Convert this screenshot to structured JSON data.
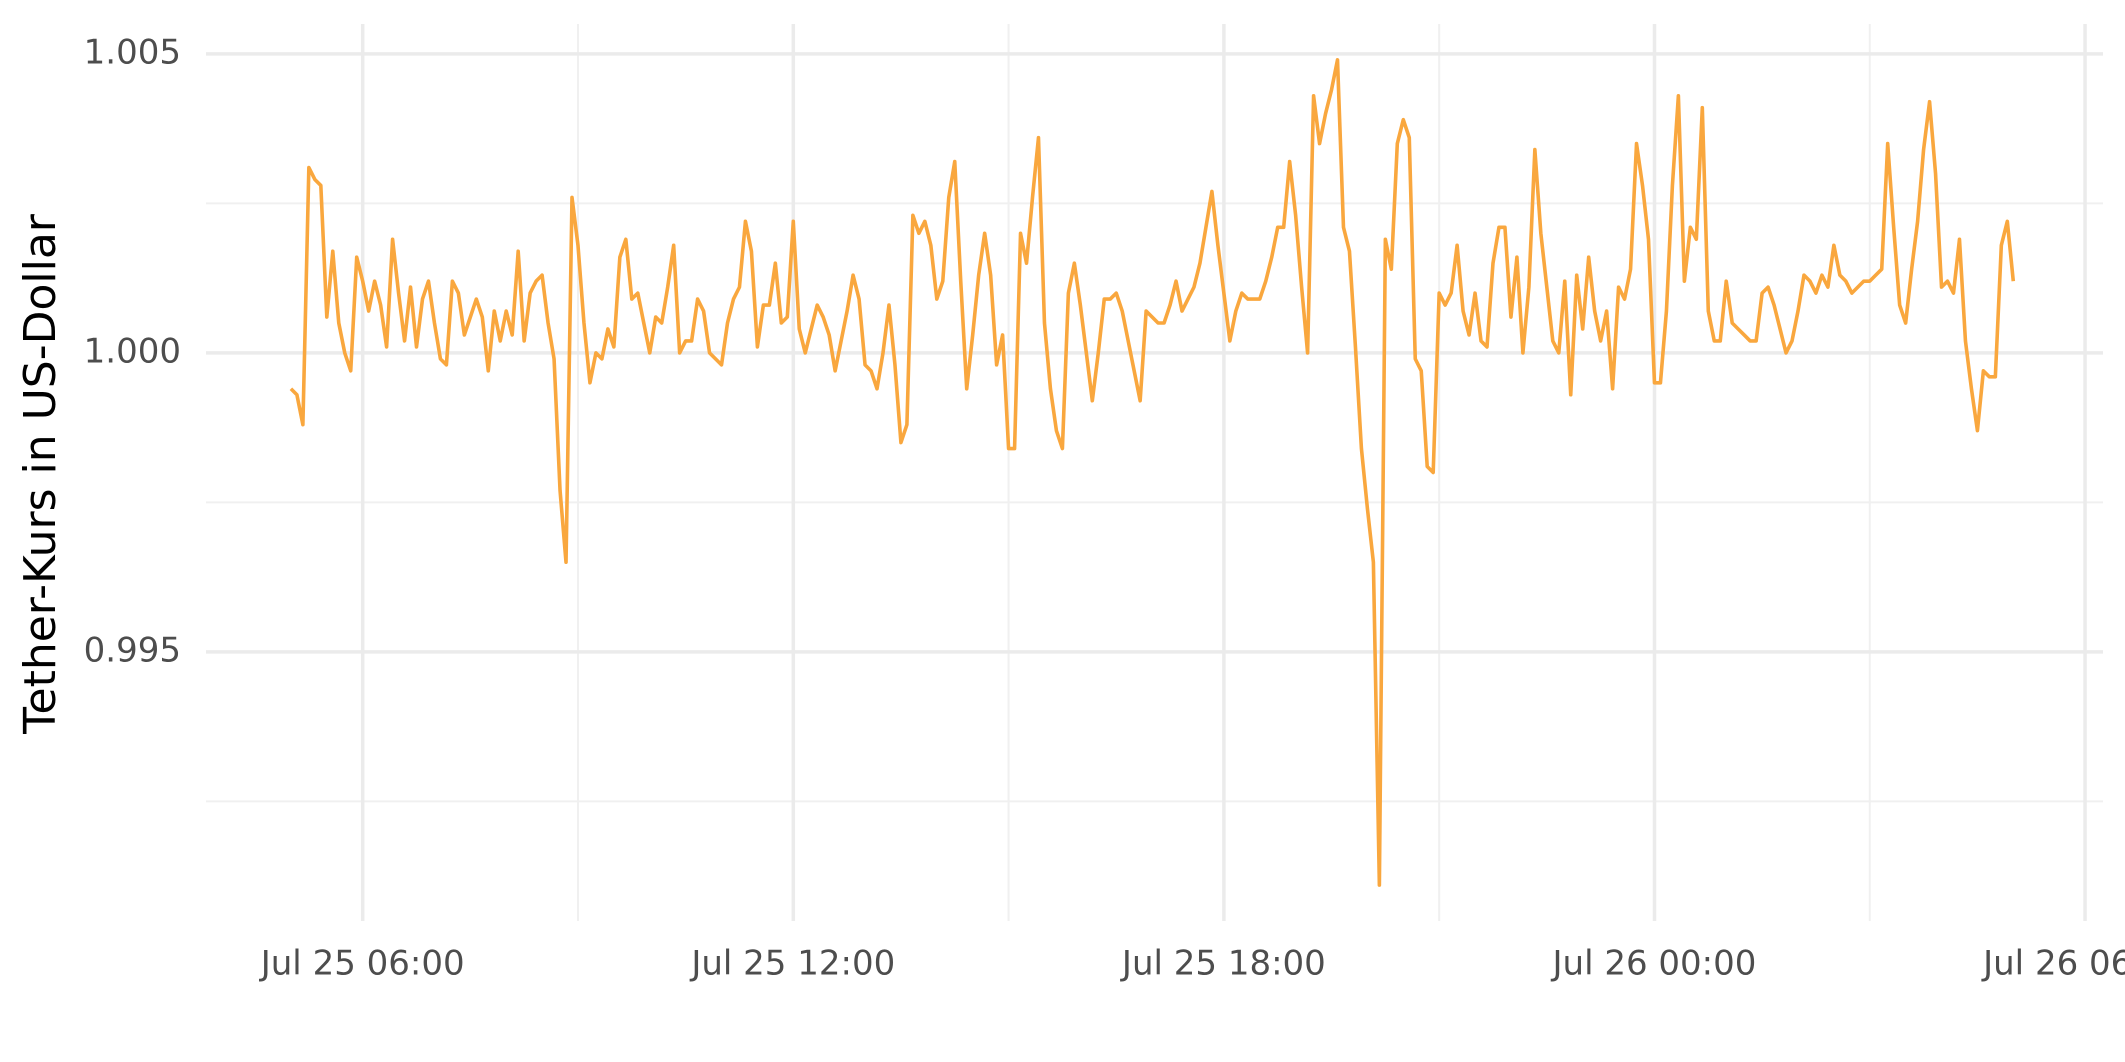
{
  "chart_data": {
    "type": "line",
    "ylabel": "Tether-Kurs in US-Dollar",
    "color": "#f9a73e",
    "grid": true,
    "xlim": [
      "Jul 25 03:49",
      "Jul 26 06:15"
    ],
    "xticks": [
      "Jul 25 06:00",
      "Jul 25 12:00",
      "Jul 25 18:00",
      "Jul 26 00:00",
      "Jul 26 06:00"
    ],
    "xminor": [
      "Jul 25 09:00",
      "Jul 25 15:00",
      "Jul 25 21:00",
      "Jul 26 03:00"
    ],
    "ylim": [
      0.9905,
      1.0055
    ],
    "yticks": [
      0.995,
      {
        "value": 1,
        "label": "1.000"
      },
      1.005
    ],
    "yminor": [
      0.9925,
      0.9975,
      1.0025
    ],
    "x": [
      "Jul 25 05:00",
      "Jul 25 05:05",
      "Jul 25 05:10",
      "Jul 25 05:15",
      "Jul 25 05:20",
      "Jul 25 05:25",
      "Jul 25 05:30",
      "Jul 25 05:35",
      "Jul 25 05:40",
      "Jul 25 05:45",
      "Jul 25 05:50",
      "Jul 25 05:55",
      "Jul 25 06:00",
      "Jul 25 06:05",
      "Jul 25 06:10",
      "Jul 25 06:15",
      "Jul 25 06:20",
      "Jul 25 06:25",
      "Jul 25 06:30",
      "Jul 25 06:35",
      "Jul 25 06:40",
      "Jul 25 06:45",
      "Jul 25 06:50",
      "Jul 25 06:55",
      "Jul 25 07:00",
      "Jul 25 07:05",
      "Jul 25 07:10",
      "Jul 25 07:15",
      "Jul 25 07:20",
      "Jul 25 07:25",
      "Jul 25 07:30",
      "Jul 25 07:35",
      "Jul 25 07:40",
      "Jul 25 07:45",
      "Jul 25 07:50",
      "Jul 25 07:55",
      "Jul 25 08:00",
      "Jul 25 08:05",
      "Jul 25 08:10",
      "Jul 25 08:15",
      "Jul 25 08:20",
      "Jul 25 08:25",
      "Jul 25 08:30",
      "Jul 25 08:35",
      "Jul 25 08:40",
      "Jul 25 08:45",
      "Jul 25 08:50",
      "Jul 25 08:55",
      "Jul 25 09:00",
      "Jul 25 09:05",
      "Jul 25 09:10",
      "Jul 25 09:15",
      "Jul 25 09:20",
      "Jul 25 09:25",
      "Jul 25 09:30",
      "Jul 25 09:35",
      "Jul 25 09:40",
      "Jul 25 09:45",
      "Jul 25 09:50",
      "Jul 25 09:55",
      "Jul 25 10:00",
      "Jul 25 10:05",
      "Jul 25 10:10",
      "Jul 25 10:15",
      "Jul 25 10:20",
      "Jul 25 10:25",
      "Jul 25 10:30",
      "Jul 25 10:35",
      "Jul 25 10:40",
      "Jul 25 10:45",
      "Jul 25 10:50",
      "Jul 25 10:55",
      "Jul 25 11:00",
      "Jul 25 11:05",
      "Jul 25 11:10",
      "Jul 25 11:15",
      "Jul 25 11:20",
      "Jul 25 11:25",
      "Jul 25 11:30",
      "Jul 25 11:35",
      "Jul 25 11:40",
      "Jul 25 11:45",
      "Jul 25 11:50",
      "Jul 25 11:55",
      "Jul 25 12:00",
      "Jul 25 12:05",
      "Jul 25 12:10",
      "Jul 25 12:15",
      "Jul 25 12:20",
      "Jul 25 12:25",
      "Jul 25 12:30",
      "Jul 25 12:35",
      "Jul 25 12:40",
      "Jul 25 12:45",
      "Jul 25 12:50",
      "Jul 25 12:55",
      "Jul 25 13:00",
      "Jul 25 13:05",
      "Jul 25 13:10",
      "Jul 25 13:15",
      "Jul 25 13:20",
      "Jul 25 13:25",
      "Jul 25 13:30",
      "Jul 25 13:35",
      "Jul 25 13:40",
      "Jul 25 13:45",
      "Jul 25 13:50",
      "Jul 25 13:55",
      "Jul 25 14:00",
      "Jul 25 14:05",
      "Jul 25 14:10",
      "Jul 25 14:15",
      "Jul 25 14:20",
      "Jul 25 14:25",
      "Jul 25 14:30",
      "Jul 25 14:35",
      "Jul 25 14:40",
      "Jul 25 14:45",
      "Jul 25 14:50",
      "Jul 25 14:55",
      "Jul 25 15:00",
      "Jul 25 15:05",
      "Jul 25 15:10",
      "Jul 25 15:15",
      "Jul 25 15:20",
      "Jul 25 15:25",
      "Jul 25 15:30",
      "Jul 25 15:35",
      "Jul 25 15:40",
      "Jul 25 15:45",
      "Jul 25 15:50",
      "Jul 25 15:55",
      "Jul 25 16:00",
      "Jul 25 16:05",
      "Jul 25 16:10",
      "Jul 25 16:15",
      "Jul 25 16:20",
      "Jul 25 16:25",
      "Jul 25 16:30",
      "Jul 25 16:35",
      "Jul 25 16:40",
      "Jul 25 16:45",
      "Jul 25 16:50",
      "Jul 25 16:55",
      "Jul 25 17:00",
      "Jul 25 17:05",
      "Jul 25 17:10",
      "Jul 25 17:15",
      "Jul 25 17:20",
      "Jul 25 17:25",
      "Jul 25 17:30",
      "Jul 25 17:35",
      "Jul 25 17:40",
      "Jul 25 17:45",
      "Jul 25 17:50",
      "Jul 25 17:55",
      "Jul 25 18:00",
      "Jul 25 18:05",
      "Jul 25 18:10",
      "Jul 25 18:15",
      "Jul 25 18:20",
      "Jul 25 18:25",
      "Jul 25 18:30",
      "Jul 25 18:35",
      "Jul 25 18:40",
      "Jul 25 18:45",
      "Jul 25 18:50",
      "Jul 25 18:55",
      "Jul 25 19:00",
      "Jul 25 19:05",
      "Jul 25 19:10",
      "Jul 25 19:15",
      "Jul 25 19:20",
      "Jul 25 19:25",
      "Jul 25 19:30",
      "Jul 25 19:35",
      "Jul 25 19:40",
      "Jul 25 19:45",
      "Jul 25 19:50",
      "Jul 25 19:55",
      "Jul 25 20:00",
      "Jul 25 20:05",
      "Jul 25 20:10",
      "Jul 25 20:15",
      "Jul 25 20:20",
      "Jul 25 20:25",
      "Jul 25 20:30",
      "Jul 25 20:35",
      "Jul 25 20:40",
      "Jul 25 20:45",
      "Jul 25 20:50",
      "Jul 25 20:55",
      "Jul 25 21:00",
      "Jul 25 21:05",
      "Jul 25 21:10",
      "Jul 25 21:15",
      "Jul 25 21:20",
      "Jul 25 21:25",
      "Jul 25 21:30",
      "Jul 25 21:35",
      "Jul 25 21:40",
      "Jul 25 21:45",
      "Jul 25 21:50",
      "Jul 25 21:55",
      "Jul 25 22:00",
      "Jul 25 22:05",
      "Jul 25 22:10",
      "Jul 25 22:15",
      "Jul 25 22:20",
      "Jul 25 22:25",
      "Jul 25 22:30",
      "Jul 25 22:35",
      "Jul 25 22:40",
      "Jul 25 22:45",
      "Jul 25 22:50",
      "Jul 25 22:55",
      "Jul 25 23:00",
      "Jul 25 23:05",
      "Jul 25 23:10",
      "Jul 25 23:15",
      "Jul 25 23:20",
      "Jul 25 23:25",
      "Jul 25 23:30",
      "Jul 25 23:35",
      "Jul 25 23:40",
      "Jul 25 23:45",
      "Jul 25 23:50",
      "Jul 25 23:55",
      "Jul 26 00:00",
      "Jul 26 00:05",
      "Jul 26 00:10",
      "Jul 26 00:15",
      "Jul 26 00:20",
      "Jul 26 00:25",
      "Jul 26 00:30",
      "Jul 26 00:35",
      "Jul 26 00:40",
      "Jul 26 00:45",
      "Jul 26 00:50",
      "Jul 26 00:55",
      "Jul 26 01:00",
      "Jul 26 01:05",
      "Jul 26 01:10",
      "Jul 26 01:15",
      "Jul 26 01:20",
      "Jul 26 01:25",
      "Jul 26 01:30",
      "Jul 26 01:35",
      "Jul 26 01:40",
      "Jul 26 01:45",
      "Jul 26 01:50",
      "Jul 26 01:55",
      "Jul 26 02:00",
      "Jul 26 02:05",
      "Jul 26 02:10",
      "Jul 26 02:15",
      "Jul 26 02:20",
      "Jul 26 02:25",
      "Jul 26 02:30",
      "Jul 26 02:35",
      "Jul 26 02:40",
      "Jul 26 02:45",
      "Jul 26 02:50",
      "Jul 26 02:55",
      "Jul 26 03:00",
      "Jul 26 03:05",
      "Jul 26 03:10",
      "Jul 26 03:15",
      "Jul 26 03:20",
      "Jul 26 03:25",
      "Jul 26 03:30",
      "Jul 26 03:35",
      "Jul 26 03:40",
      "Jul 26 03:45",
      "Jul 26 03:50",
      "Jul 26 03:55",
      "Jul 26 04:00",
      "Jul 26 04:05",
      "Jul 26 04:10",
      "Jul 26 04:15",
      "Jul 26 04:20",
      "Jul 26 04:25",
      "Jul 26 04:30",
      "Jul 26 04:35",
      "Jul 26 04:40",
      "Jul 26 04:45",
      "Jul 26 04:50",
      "Jul 26 04:55",
      "Jul 26 05:00"
    ],
    "values": [
      0.9994,
      0.9993,
      0.9988,
      1.0031,
      1.0029,
      1.0028,
      1.0006,
      1.0017,
      1.0005,
      1.0,
      0.9997,
      1.0016,
      1.0012,
      1.0007,
      1.0012,
      1.0008,
      1.0001,
      1.0019,
      1.001,
      1.0002,
      1.0011,
      1.0001,
      1.0009,
      1.0012,
      1.0005,
      0.9999,
      0.9998,
      1.0012,
      1.001,
      1.0003,
      1.0006,
      1.0009,
      1.0006,
      0.9997,
      1.0007,
      1.0002,
      1.0007,
      1.0003,
      1.0017,
      1.0002,
      1.001,
      1.0012,
      1.0013,
      1.0005,
      0.9999,
      0.9977,
      0.9965,
      1.0026,
      1.0018,
      1.0005,
      0.9995,
      1.0,
      0.9999,
      1.0004,
      1.0001,
      1.0016,
      1.0019,
      1.0009,
      1.001,
      1.0005,
      1.0,
      1.0006,
      1.0005,
      1.0011,
      1.0018,
      1.0,
      1.0002,
      1.0002,
      1.0009,
      1.0007,
      1.0,
      0.9999,
      0.9998,
      1.0005,
      1.0009,
      1.0011,
      1.0022,
      1.0017,
      1.0001,
      1.0008,
      1.0008,
      1.0015,
      1.0005,
      1.0006,
      1.0022,
      1.0004,
      1.0,
      1.0004,
      1.0008,
      1.0006,
      1.0003,
      0.9997,
      1.0002,
      1.0007,
      1.0013,
      1.0009,
      0.9998,
      0.9997,
      0.9994,
      1.0,
      1.0008,
      0.9998,
      0.9985,
      0.9988,
      1.0023,
      1.002,
      1.0022,
      1.0018,
      1.0009,
      1.0012,
      1.0026,
      1.0032,
      1.0012,
      0.9994,
      1.0003,
      1.0013,
      1.002,
      1.0013,
      0.9998,
      1.0003,
      0.9984,
      0.9984,
      1.002,
      1.0015,
      1.0026,
      1.0036,
      1.0005,
      0.9994,
      0.9987,
      0.9984,
      1.001,
      1.0015,
      1.0008,
      1.0,
      0.9992,
      1.0,
      1.0009,
      1.0009,
      1.001,
      1.0007,
      1.0002,
      0.9997,
      0.9992,
      1.0007,
      1.0006,
      1.0005,
      1.0005,
      1.0008,
      1.0012,
      1.0007,
      1.0009,
      1.0011,
      1.0015,
      1.0021,
      1.0027,
      1.0018,
      1.001,
      1.0002,
      1.0007,
      1.001,
      1.0009,
      1.0009,
      1.0009,
      1.0012,
      1.0016,
      1.0021,
      1.0021,
      1.0032,
      1.0023,
      1.0011,
      1.0,
      1.0043,
      1.0035,
      1.004,
      1.0044,
      1.0049,
      1.0021,
      1.0017,
      1.0001,
      0.9984,
      0.9974,
      0.9965,
      0.9911,
      1.0019,
      1.0014,
      1.0035,
      1.0039,
      1.0036,
      0.9999,
      0.9997,
      0.9981,
      0.998,
      1.001,
      1.0008,
      1.001,
      1.0018,
      1.0007,
      1.0003,
      1.001,
      1.0002,
      1.0001,
      1.0015,
      1.0021,
      1.0021,
      1.0006,
      1.0016,
      1.0,
      1.0011,
      1.0034,
      1.002,
      1.0011,
      1.0002,
      1.0,
      1.0012,
      0.9993,
      1.0013,
      1.0004,
      1.0016,
      1.0007,
      1.0002,
      1.0007,
      0.9994,
      1.0011,
      1.0009,
      1.0014,
      1.0035,
      1.0028,
      1.0019,
      0.9995,
      0.9995,
      1.0007,
      1.0028,
      1.0043,
      1.0012,
      1.0021,
      1.0019,
      1.0041,
      1.0007,
      1.0002,
      1.0002,
      1.0012,
      1.0005,
      1.0004,
      1.0003,
      1.0002,
      1.0002,
      1.001,
      1.0011,
      1.0008,
      1.0004,
      1.0,
      1.0002,
      1.0007,
      1.0013,
      1.0012,
      1.001,
      1.0013,
      1.0011,
      1.0018,
      1.0013,
      1.0012,
      1.001,
      1.0011,
      1.0012,
      1.0012,
      1.0013,
      1.0014,
      1.0035,
      1.0021,
      1.0008,
      1.0005,
      1.0014,
      1.0022,
      1.0034,
      1.0042,
      1.003,
      1.0011,
      1.0012,
      1.001,
      1.0019,
      1.0002,
      0.9994,
      0.9987,
      0.9997,
      0.9996,
      0.9996,
      1.0018,
      1.0022,
      1.0012
    ]
  }
}
